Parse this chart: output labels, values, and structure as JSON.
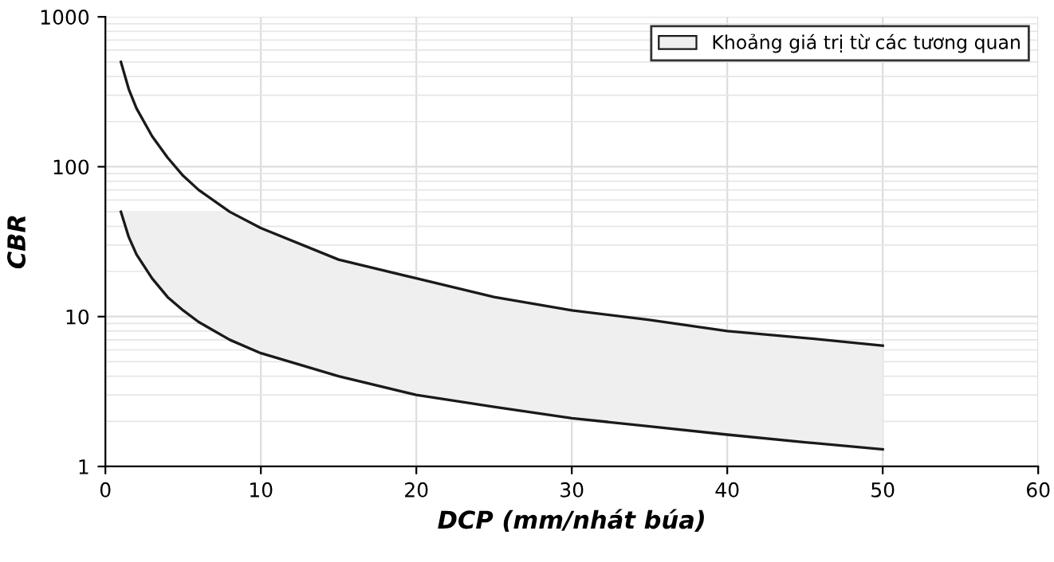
{
  "chart_data": {
    "type": "line",
    "xlabel": "DCP (mm/nhát búa)",
    "ylabel": "CBR",
    "log": "y",
    "grid": true,
    "legend": "top right",
    "marker": "none",
    "line_style": "solid",
    "xlim": [
      0,
      60
    ],
    "xticks": [
      0,
      10,
      20,
      30,
      40,
      50,
      60
    ],
    "ylim": [
      1,
      1000
    ],
    "yticks": [
      1,
      10,
      100,
      1000
    ],
    "series": [
      {
        "name": "Khoảng giá trị từ các tương quan",
        "color": "#1a1a1a",
        "x": [
          1,
          1.5,
          2,
          3,
          4,
          5,
          6,
          8,
          10,
          15,
          20,
          25,
          30,
          35,
          40,
          45,
          50
        ],
        "values": [
          50,
          34,
          26,
          18,
          13.5,
          11,
          9.2,
          7,
          5.7,
          4,
          3,
          2.5,
          2.1,
          1.85,
          1.63,
          1.45,
          1.3
        ],
        "lower": [
          50,
          34,
          26,
          18,
          13.5,
          11,
          9.2,
          7,
          5.7,
          4,
          3,
          2.5,
          2.1,
          1.85,
          1.63,
          1.45,
          1.3
        ],
        "upper": [
          50,
          50,
          50,
          50,
          50,
          50,
          50,
          50,
          39,
          24,
          18,
          13.5,
          11,
          9.5,
          8,
          7.2,
          6.4
        ]
      },
      {
        "color": "#1a1a1a",
        "x": [
          1,
          1.5,
          2,
          3,
          4,
          5,
          6,
          8,
          10,
          15,
          20,
          25,
          30,
          35,
          40,
          45,
          50
        ],
        "values": [
          500,
          330,
          245,
          160,
          115,
          87,
          70,
          50,
          39,
          24,
          18,
          13.5,
          11,
          9.5,
          8,
          7.2,
          6.4
        ]
      }
    ]
  }
}
